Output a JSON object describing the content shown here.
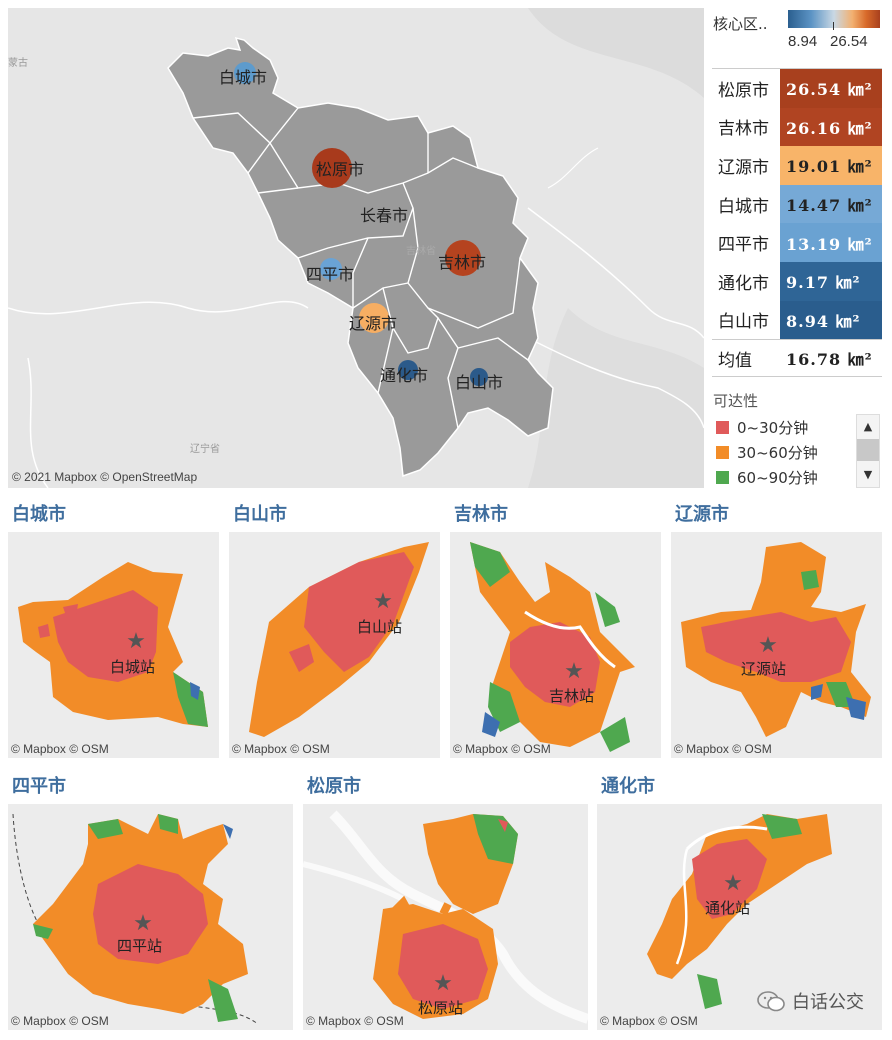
{
  "main_map": {
    "attribution": "© 2021 Mapbox © OpenStreetMap",
    "faint_labels": [
      "蒙古",
      "辽宁省",
      "吉林省"
    ],
    "cities": [
      {
        "name": "白城市",
        "color": "#5a9bd0",
        "value": 14.47
      },
      {
        "name": "松原市",
        "color": "#a83a1c",
        "value": 26.54
      },
      {
        "name": "长春市",
        "color": "",
        "value": null
      },
      {
        "name": "吉林市",
        "color": "#b5431f",
        "value": 26.16
      },
      {
        "name": "四平市",
        "color": "#6aa3d5",
        "value": 13.19
      },
      {
        "name": "辽源市",
        "color": "#f6ae63",
        "value": 19.01
      },
      {
        "name": "通化市",
        "color": "#2b5a8a",
        "value": 9.17
      },
      {
        "name": "白山市",
        "color": "#2b5a8a",
        "value": 8.94
      }
    ]
  },
  "legend": {
    "title": "核心区..",
    "min_label": "8.94",
    "max_label": "26.54"
  },
  "ranking": {
    "rows": [
      {
        "city": "松原市",
        "value": "26.54 ㎞²",
        "bg": "#a8401e",
        "fg": "#ffffff"
      },
      {
        "city": "吉林市",
        "value": "26.16 ㎞²",
        "bg": "#b04422",
        "fg": "#ffffff"
      },
      {
        "city": "辽源市",
        "value": "19.01 ㎞²",
        "bg": "#f8b469",
        "fg": "#222222"
      },
      {
        "city": "白城市",
        "value": "14.47 ㎞²",
        "bg": "#76a9d6",
        "fg": "#222222"
      },
      {
        "city": "四平市",
        "value": "13.19 ㎞²",
        "bg": "#6aa2d2",
        "fg": "#ffffff"
      },
      {
        "city": "通化市",
        "value": "9.17 ㎞²",
        "bg": "#2f6596",
        "fg": "#ffffff"
      },
      {
        "city": "白山市",
        "value": "8.94 ㎞²",
        "bg": "#2a5d8d",
        "fg": "#ffffff"
      }
    ],
    "avg_label": "均值",
    "avg_value": "16.78 ㎞²"
  },
  "access_legend": {
    "title": "可达性",
    "items": [
      {
        "label": "0~30分钟",
        "color": "#e05a5a"
      },
      {
        "label": "30~60分钟",
        "color": "#f28c28"
      },
      {
        "label": "60~90分钟",
        "color": "#4fa84f"
      }
    ]
  },
  "panels": [
    {
      "title": "白城市",
      "station": "白城站",
      "attribution": "© Mapbox © OSM"
    },
    {
      "title": "白山市",
      "station": "白山站",
      "attribution": "© Mapbox © OSM"
    },
    {
      "title": "吉林市",
      "station": "吉林站",
      "attribution": "© Mapbox © OSM"
    },
    {
      "title": "辽源市",
      "station": "辽源站",
      "attribution": "© Mapbox © OSM"
    },
    {
      "title": "四平市",
      "station": "四平站",
      "attribution": "© Mapbox © OSM"
    },
    {
      "title": "松原市",
      "station": "松原站",
      "attribution": "© Mapbox © OSM"
    },
    {
      "title": "通化市",
      "station": "通化站",
      "attribution": "© Mapbox © OSM"
    }
  ],
  "watermark": "白话公交"
}
